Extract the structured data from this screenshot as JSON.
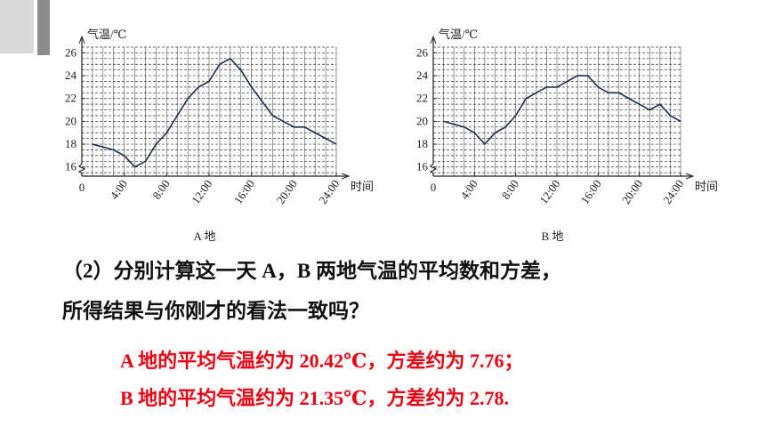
{
  "chart_data": [
    {
      "type": "line",
      "caption": "A 地",
      "y_label": "气温/℃",
      "x_label": "时间",
      "x": [
        1,
        3,
        4,
        5,
        6,
        7,
        8,
        10,
        11,
        12,
        13,
        14,
        15,
        16,
        18,
        20,
        21,
        22,
        24
      ],
      "series": [
        {
          "color": "#1f2d4d",
          "values": [
            18,
            17.5,
            17,
            16,
            16.5,
            18,
            19,
            22,
            23,
            23.5,
            25,
            25.5,
            24.5,
            23,
            20.5,
            19.5,
            19.5,
            19,
            18
          ]
        }
      ],
      "xlim": [
        0,
        24
      ],
      "ylim": [
        15.2,
        26.5
      ],
      "xticks": [
        0,
        {
          "value": 4,
          "label": "4:00"
        },
        {
          "value": 8,
          "label": "8:00"
        },
        {
          "value": 12,
          "label": "12:00"
        },
        {
          "value": 16,
          "label": "16:00"
        },
        {
          "value": 20,
          "label": "20:00"
        },
        {
          "value": 24,
          "label": "24:00"
        }
      ],
      "yticks": [
        16,
        18,
        20,
        22,
        24,
        26
      ],
      "grid": true
    },
    {
      "type": "line",
      "caption": "B 地",
      "y_label": "气温/℃",
      "x_label": "时间",
      "x": [
        1,
        3,
        4,
        5,
        6,
        7,
        8,
        9,
        10,
        11,
        12,
        13,
        14,
        15,
        16,
        17,
        18,
        19,
        20,
        21,
        22,
        23,
        24
      ],
      "series": [
        {
          "color": "#1f2d4d",
          "values": [
            20,
            19.5,
            19,
            18,
            19,
            19.5,
            20.5,
            22,
            22.5,
            23,
            23,
            23.5,
            24,
            24,
            23,
            22.5,
            22.5,
            22,
            21.5,
            21,
            21.5,
            20.5,
            20
          ]
        }
      ],
      "xlim": [
        0,
        24
      ],
      "ylim": [
        15.2,
        26.5
      ],
      "xticks": [
        0,
        {
          "value": 4,
          "label": "4:00"
        },
        {
          "value": 8,
          "label": "8:00"
        },
        {
          "value": 12,
          "label": "12:00"
        },
        {
          "value": 16,
          "label": "16:00"
        },
        {
          "value": 20,
          "label": "20:00"
        },
        {
          "value": 24,
          "label": "24:00"
        }
      ],
      "yticks": [
        16,
        18,
        20,
        22,
        24,
        26
      ],
      "grid": true
    }
  ],
  "question": [
    "（2）分别计算这一天 A，B 两地气温的平均数和方差，",
    "所得结果与你刚才的看法一致吗？"
  ],
  "answers": [
    "A 地的平均气温约为 20.42℃，方差约为 7.76；",
    "B 地的平均气温约为 21.35℃，方差约为 2.78."
  ]
}
